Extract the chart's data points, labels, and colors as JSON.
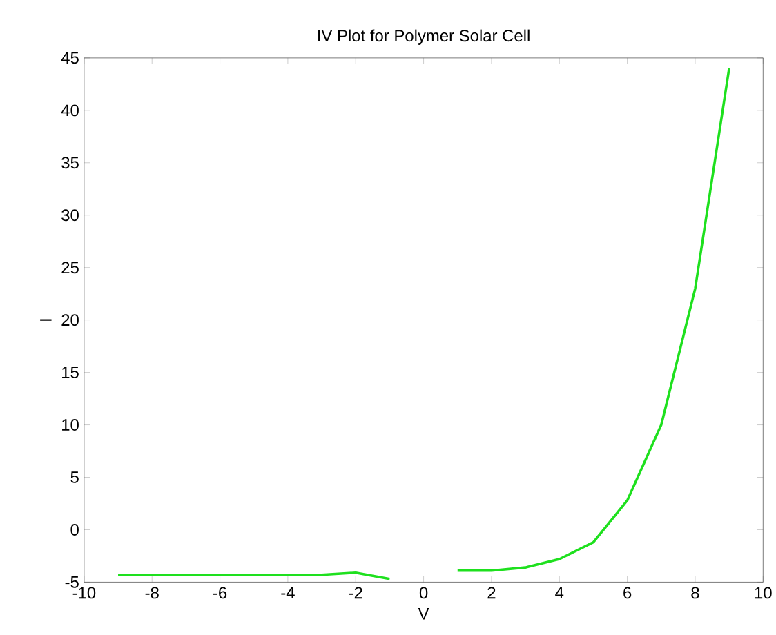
{
  "chart_data": {
    "type": "line",
    "title": "IV Plot for Polymer Solar Cell",
    "xlabel": "V",
    "ylabel": "I",
    "x": [
      -9,
      -8,
      -7,
      -6,
      -5,
      -4,
      -3,
      -2,
      -1,
      0,
      1,
      2,
      3,
      4,
      5,
      6,
      7,
      8,
      9
    ],
    "series": [
      {
        "color": "#1ee01e",
        "values": [
          -4.3,
          -4.3,
          -4.3,
          -4.3,
          -4.3,
          -4.3,
          -4.3,
          -4.1,
          -4.7,
          null,
          -3.9,
          -3.9,
          -3.6,
          -2.8,
          -1.2,
          2.8,
          10,
          23,
          44
        ]
      }
    ],
    "xlim": [
      -10,
      10
    ],
    "ylim": [
      -5,
      45
    ],
    "xticks": [
      -10,
      -8,
      -6,
      -4,
      -2,
      0,
      2,
      4,
      6,
      8,
      10
    ],
    "yticks": [
      -5,
      0,
      5,
      10,
      15,
      20,
      25,
      30,
      35,
      40,
      45
    ],
    "marker": "none",
    "line_style": "solid"
  }
}
